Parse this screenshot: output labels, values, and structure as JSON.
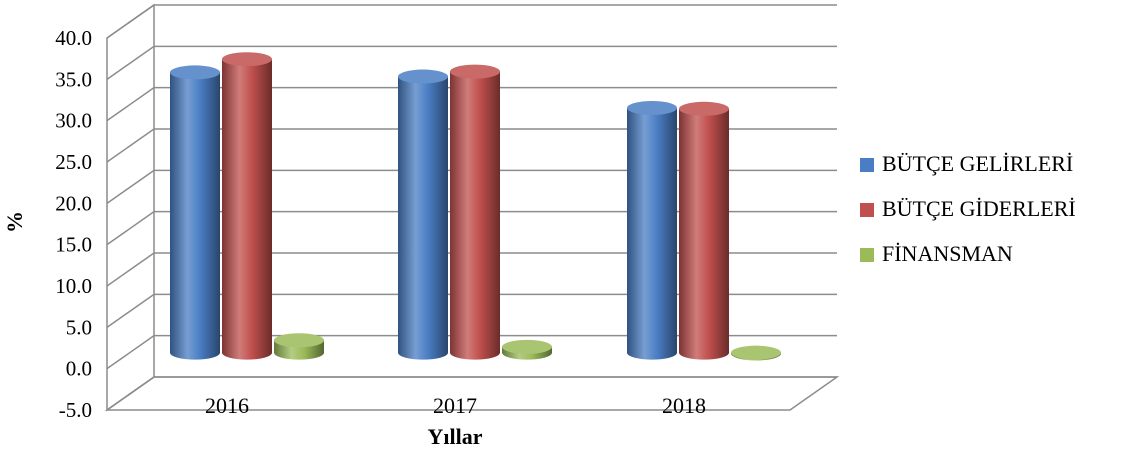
{
  "chart_data": {
    "type": "bar",
    "categories": [
      "2016",
      "2017",
      "2018"
    ],
    "series": [
      {
        "name": "BÜTÇE GELİRLERİ",
        "values": [
          33.9,
          33.4,
          29.6
        ],
        "color": "#4a7ec4"
      },
      {
        "name": "BÜTÇE GİDERLERİ",
        "values": [
          35.5,
          34.0,
          29.5
        ],
        "color": "#c0504d"
      },
      {
        "name": "FİNANSMAN",
        "values": [
          1.5,
          0.7,
          -0.1
        ],
        "color": "#9bbb59"
      }
    ],
    "xlabel": "Yıllar",
    "ylabel": "%",
    "ylim": [
      -5.0,
      40.0
    ],
    "yticks": [
      -5.0,
      0.0,
      5.0,
      10.0,
      15.0,
      20.0,
      25.0,
      30.0,
      35.0,
      40.0
    ],
    "grid": true,
    "legend_position": "right",
    "style": "3d-cylinder"
  }
}
